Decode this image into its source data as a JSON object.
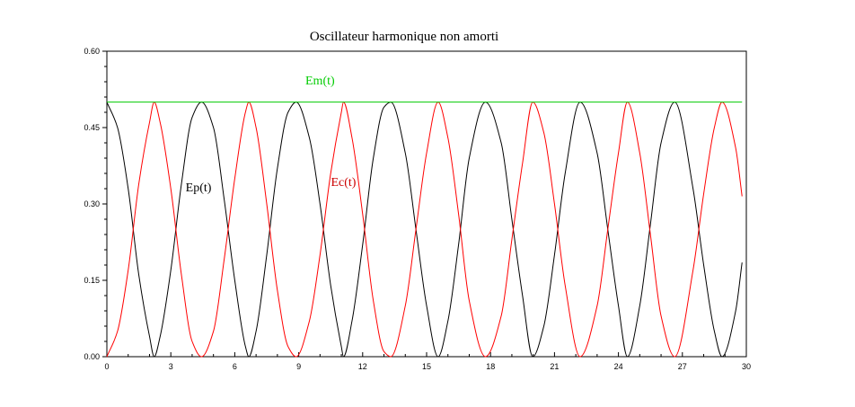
{
  "chart_data": {
    "type": "line",
    "title": "Oscillateur harmonique non amorti",
    "xlabel": "",
    "ylabel": "",
    "xlim": [
      0,
      30
    ],
    "ylim": [
      0,
      0.6
    ],
    "x_ticks": [
      "0",
      "3",
      "6",
      "9",
      "12",
      "15",
      "18",
      "21",
      "24",
      "27",
      "30"
    ],
    "y_ticks": [
      "0.00",
      "0.15",
      "0.30",
      "0.45",
      "0.60"
    ],
    "grid": false,
    "legend": "none",
    "series": [
      {
        "name": "Ep(t)",
        "color": "#000000",
        "x": [
          0,
          0.5,
          1,
          1.5,
          2,
          2.22,
          2.5,
          3,
          3.5,
          4,
          4.44,
          5,
          5.5,
          6,
          6.5,
          6.66,
          7,
          7.5,
          8,
          8.5,
          8.88,
          9.5,
          10,
          10.5,
          11,
          11.1,
          11.5,
          12,
          12.5,
          13,
          13.32,
          14,
          14.5,
          15,
          15.54,
          16,
          16.5,
          17,
          17.76,
          18.5,
          19,
          19.5,
          19.98,
          20.5,
          21,
          21.5,
          22.2,
          23,
          23.5,
          24,
          24.42,
          25,
          25.5,
          26,
          26.64,
          27.5,
          28,
          28.5,
          28.86,
          29.5,
          29.8
        ],
        "values": [
          0.5,
          0.45,
          0.33,
          0.16,
          0.04,
          0.0,
          0.04,
          0.17,
          0.34,
          0.47,
          0.5,
          0.45,
          0.31,
          0.15,
          0.02,
          0.0,
          0.05,
          0.2,
          0.37,
          0.48,
          0.5,
          0.43,
          0.3,
          0.14,
          0.02,
          0.0,
          0.07,
          0.22,
          0.39,
          0.49,
          0.5,
          0.4,
          0.25,
          0.1,
          0.0,
          0.07,
          0.22,
          0.39,
          0.5,
          0.42,
          0.27,
          0.12,
          0.0,
          0.06,
          0.2,
          0.36,
          0.5,
          0.4,
          0.25,
          0.1,
          0.0,
          0.1,
          0.26,
          0.42,
          0.5,
          0.33,
          0.18,
          0.05,
          0.0,
          0.09,
          0.185
        ]
      },
      {
        "name": "Ec(t)",
        "color": "#ff0000",
        "x": [
          0,
          0.5,
          1,
          1.5,
          2,
          2.22,
          2.5,
          3,
          3.5,
          4,
          4.44,
          5,
          5.5,
          6,
          6.5,
          6.66,
          7,
          7.5,
          8,
          8.5,
          8.88,
          9.5,
          10,
          10.5,
          11,
          11.1,
          11.5,
          12,
          12.5,
          13,
          13.32,
          14,
          14.5,
          15,
          15.54,
          16,
          16.5,
          17,
          17.76,
          18.5,
          19,
          19.5,
          19.98,
          20.5,
          21,
          21.5,
          22.2,
          23,
          23.5,
          24,
          24.42,
          25,
          25.5,
          26,
          26.64,
          27.5,
          28,
          28.5,
          28.86,
          29.5,
          29.8
        ],
        "values": [
          0.0,
          0.05,
          0.17,
          0.34,
          0.46,
          0.5,
          0.46,
          0.33,
          0.16,
          0.03,
          0.0,
          0.05,
          0.19,
          0.35,
          0.48,
          0.5,
          0.45,
          0.3,
          0.13,
          0.02,
          0.0,
          0.07,
          0.2,
          0.36,
          0.48,
          0.5,
          0.43,
          0.28,
          0.11,
          0.01,
          0.0,
          0.1,
          0.25,
          0.4,
          0.5,
          0.43,
          0.28,
          0.11,
          0.0,
          0.08,
          0.23,
          0.38,
          0.5,
          0.44,
          0.3,
          0.14,
          0.0,
          0.1,
          0.25,
          0.4,
          0.5,
          0.4,
          0.24,
          0.08,
          0.0,
          0.17,
          0.32,
          0.45,
          0.5,
          0.41,
          0.315
        ]
      },
      {
        "name": "Em(t)",
        "color": "#00cc00",
        "x": [
          0,
          29.8
        ],
        "values": [
          0.5,
          0.5
        ]
      }
    ],
    "annotations": [
      {
        "text": "Em(t)",
        "x": 10.0,
        "y": 0.535,
        "color": "#00cc00"
      },
      {
        "text": "Ep(t)",
        "x": 4.3,
        "y": 0.325,
        "color": "#000000"
      },
      {
        "text": "Ec(t)",
        "x": 11.1,
        "y": 0.335,
        "color": "#cc0000"
      }
    ]
  }
}
